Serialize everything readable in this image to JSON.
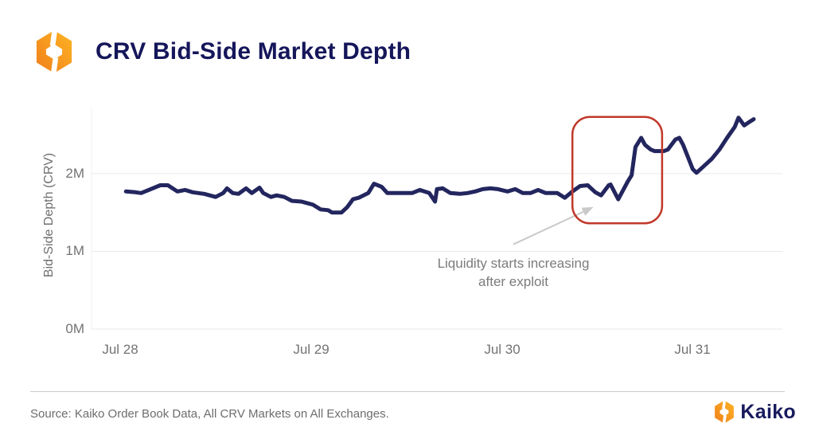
{
  "header": {
    "title": "CRV Bid-Side Market Depth"
  },
  "footer": {
    "source": "Source: Kaiko Order Book Data, All CRV Markets on All Exchanges.",
    "brand": "Kaiko"
  },
  "icons": {
    "header_logo": "kaiko-hexagon-logo",
    "footer_logo": "kaiko-hexagon-logo"
  },
  "chart_data": {
    "type": "line",
    "title": "CRV Bid-Side Market Depth",
    "xlabel": "",
    "ylabel": "Bid-Side Depth (CRV)",
    "legend": "none",
    "grid": "horizontal",
    "x_ticks": [
      {
        "label": "Jul 28",
        "day": 0
      },
      {
        "label": "Jul 29",
        "day": 1
      },
      {
        "label": "Jul 30",
        "day": 2
      },
      {
        "label": "Jul 31",
        "day": 3
      }
    ],
    "y_ticks": [
      {
        "label": "0M",
        "value": 0
      },
      {
        "label": "1M",
        "value": 1
      },
      {
        "label": "2M",
        "value": 2
      }
    ],
    "x_range_days": [
      -0.15,
      3.47
    ],
    "y_range_m": [
      0,
      2.85
    ],
    "series": [
      {
        "name": "CRV bid-side market depth",
        "unit": "millions CRV",
        "points": [
          [
            0.03,
            1.77
          ],
          [
            0.08,
            1.76
          ],
          [
            0.11,
            1.75
          ],
          [
            0.16,
            1.8
          ],
          [
            0.21,
            1.85
          ],
          [
            0.25,
            1.85
          ],
          [
            0.3,
            1.77
          ],
          [
            0.34,
            1.79
          ],
          [
            0.38,
            1.76
          ],
          [
            0.44,
            1.74
          ],
          [
            0.5,
            1.7
          ],
          [
            0.54,
            1.75
          ],
          [
            0.56,
            1.81
          ],
          [
            0.59,
            1.75
          ],
          [
            0.62,
            1.74
          ],
          [
            0.66,
            1.81
          ],
          [
            0.69,
            1.75
          ],
          [
            0.73,
            1.82
          ],
          [
            0.75,
            1.75
          ],
          [
            0.79,
            1.7
          ],
          [
            0.82,
            1.72
          ],
          [
            0.86,
            1.7
          ],
          [
            0.9,
            1.65
          ],
          [
            0.95,
            1.64
          ],
          [
            1.01,
            1.6
          ],
          [
            1.05,
            1.54
          ],
          [
            1.09,
            1.53
          ],
          [
            1.11,
            1.5
          ],
          [
            1.16,
            1.5
          ],
          [
            1.19,
            1.57
          ],
          [
            1.22,
            1.67
          ],
          [
            1.25,
            1.69
          ],
          [
            1.3,
            1.75
          ],
          [
            1.33,
            1.87
          ],
          [
            1.37,
            1.83
          ],
          [
            1.4,
            1.75
          ],
          [
            1.45,
            1.75
          ],
          [
            1.53,
            1.75
          ],
          [
            1.57,
            1.79
          ],
          [
            1.62,
            1.75
          ],
          [
            1.65,
            1.64
          ],
          [
            1.66,
            1.8
          ],
          [
            1.69,
            1.81
          ],
          [
            1.73,
            1.75
          ],
          [
            1.78,
            1.74
          ],
          [
            1.82,
            1.75
          ],
          [
            1.86,
            1.77
          ],
          [
            1.9,
            1.8
          ],
          [
            1.94,
            1.81
          ],
          [
            1.98,
            1.8
          ],
          [
            2.03,
            1.77
          ],
          [
            2.07,
            1.8
          ],
          [
            2.11,
            1.75
          ],
          [
            2.15,
            1.75
          ],
          [
            2.19,
            1.79
          ],
          [
            2.23,
            1.75
          ],
          [
            2.29,
            1.75
          ],
          [
            2.33,
            1.69
          ],
          [
            2.37,
            1.77
          ],
          [
            2.41,
            1.84
          ],
          [
            2.45,
            1.85
          ],
          [
            2.49,
            1.76
          ],
          [
            2.52,
            1.72
          ],
          [
            2.56,
            1.85
          ],
          [
            2.57,
            1.86
          ],
          [
            2.61,
            1.67
          ],
          [
            2.66,
            1.9
          ],
          [
            2.68,
            1.98
          ],
          [
            2.7,
            2.34
          ],
          [
            2.73,
            2.46
          ],
          [
            2.75,
            2.37
          ],
          [
            2.78,
            2.31
          ],
          [
            2.8,
            2.29
          ],
          [
            2.85,
            2.29
          ],
          [
            2.87,
            2.31
          ],
          [
            2.91,
            2.44
          ],
          [
            2.93,
            2.46
          ],
          [
            2.95,
            2.37
          ],
          [
            3.0,
            2.06
          ],
          [
            3.02,
            2.01
          ],
          [
            3.06,
            2.1
          ],
          [
            3.1,
            2.19
          ],
          [
            3.14,
            2.31
          ],
          [
            3.18,
            2.46
          ],
          [
            3.22,
            2.6
          ],
          [
            3.24,
            2.72
          ],
          [
            3.27,
            2.62
          ],
          [
            3.3,
            2.67
          ],
          [
            3.32,
            2.7
          ]
        ]
      }
    ],
    "annotation": {
      "line1": "Liquidity starts increasing",
      "line2": "after exploit",
      "text_day": 2.06,
      "text_m": 0.95,
      "box": {
        "x0_day": 2.37,
        "x1_day": 2.84,
        "y0_m": 1.36,
        "y1_m": 2.73
      },
      "arrow": {
        "from_day": 2.06,
        "from_m": 1.09,
        "to_day": 2.48,
        "to_m": 1.57
      }
    },
    "style": {
      "line_color": "#23265e",
      "highlight_box_color": "#c1392b",
      "arrow_color": "#c9c9c9",
      "grid_color": "#e9e9e9",
      "axis_line_color": "#f0f0f0",
      "tick_color": "#737373",
      "annotation_text_color": "#7b7b7b",
      "brand_navy": "#191b5e",
      "brand_orange_light": "#fcb525",
      "brand_orange_dark": "#ef7f1d"
    }
  }
}
